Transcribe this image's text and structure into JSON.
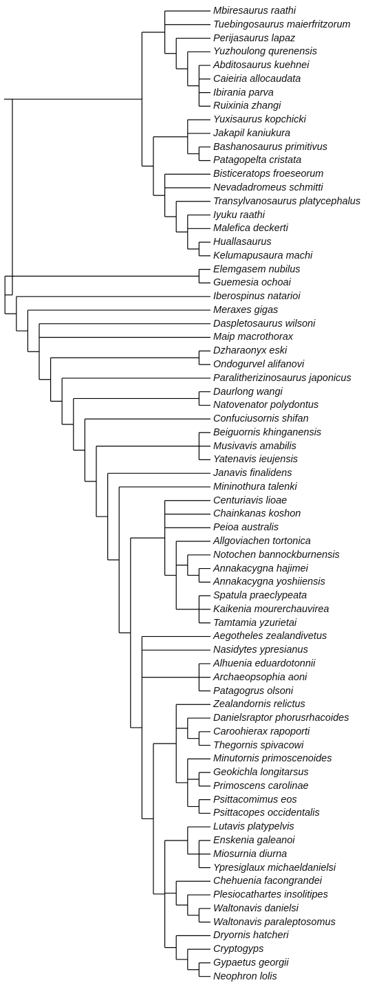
{
  "taxa": [
    "Mbiresaurus raathi",
    "Tuebingosaurus maierfritzorum",
    "Perijasaurus lapaz",
    "Yuzhoulong qurenensis",
    "Abditosaurus kuehnei",
    "Caieiria allocaudata",
    "Ibirania parva",
    "Ruixinia zhangi",
    "Yuxisaurus kopchicki",
    "Jakapil kaniukura",
    "Bashanosaurus primitivus",
    "Patagopelta cristata",
    "Bisticeratops froeseorum",
    "Nevadadromeus schmitti",
    "Transylvanosaurus platycephalus",
    "Iyuku raathi",
    "Malefica deckerti",
    "Huallasaurus",
    "Kelumapusaura machi",
    "Elemgasem nubilus",
    "Guemesia ochoai",
    "Iberospinus natarioi",
    "Meraxes gigas",
    "Daspletosaurus wilsoni",
    "Maip macrothorax",
    "Dzharaonyx eski",
    "Ondogurvel alifanovi",
    "Paralitherizinosaurus japonicus",
    "Daurlong wangi",
    "Natovenator polydontus",
    "Confuciusornis shifan",
    "Beiguornis khinganensis",
    "Musivavis amabilis",
    "Yatenavis ieujensis",
    "Janavis finalidens",
    "Mininothura talenki",
    "Centuriavis lioae",
    "Chainkanas koshon",
    "Peioa australis",
    "Allgoviachen tortonica",
    "Notochen bannockburnensis",
    "Annakacygna hajimei",
    "Annakacygna yoshiiensis",
    "Spatula praeclypeata",
    "Kaikenia mourerchauvirea",
    "Tamtamia yzurietai",
    "Aegotheles zealandivetus",
    "Nasidytes ypresianus",
    "Alhuenia eduardotonnii",
    "Archaeopsophia aoni",
    "Patagogrus olsoni",
    "Zealandornis relictus",
    "Danielsraptor phorusrhacoides",
    "Caroohierax rapoporti",
    "Thegornis spivacowi",
    "Minutornis primoscenoides",
    "Geokichla longitarsus",
    "Primoscens carolinae",
    "Psittacomimus eos",
    "Psittacopes occidentalis",
    "Lutavis platypelvis",
    "Enskenia galeanoi",
    "Miosurnia diurna",
    "Ypresiglaux michaeldanielsi",
    "Chehuenia facongrandei",
    "Plesiocathartes insolitipes",
    "Waltonavis danielsi",
    "Waltonavis paraleptosomus",
    "Dryornis hatcheri",
    "Cryptogyps",
    "Gypaetus georgii",
    "Neophron lolis"
  ],
  "tree": {
    "c": [
      {
        "c": [
          {
            "c": [
              0,
              1,
              {
                "c": [
                  2,
                  {
                    "c": [
                      3,
                      {
                        "c": [
                          4,
                          5,
                          6,
                          7
                        ]
                      }
                    ]
                  }
                ]
              }
            ]
          },
          {
            "c": [
              {
                "c": [
                  8,
                  9,
                  {
                    "c": [
                      10,
                      11
                    ]
                  }
                ]
              },
              {
                "c": [
                  12,
                  13,
                  {
                    "c": [
                      14,
                      {
                        "c": [
                          15,
                          16,
                          {
                            "c": [
                              17,
                              18
                            ]
                          }
                        ]
                      }
                    ]
                  }
                ]
              }
            ]
          }
        ]
      },
      {
        "c": [
          {
            "c": [
              19,
              20
            ]
          },
          {
            "c": [
              21,
              {
                "c": [
                  22,
                  {
                    "c": [
                      23,
                      24,
                      {
                        "c": [
                          {
                            "c": [
                              25,
                              26
                            ]
                          },
                          {
                            "c": [
                              27,
                              {
                                "c": [
                                  {
                                    "c": [
                                      28,
                                      29
                                    ]
                                  },
                                  {
                                    "c": [
                                      30,
                                      {
                                        "c": [
                                          {
                                            "c": [
                                              31,
                                              32,
                                              33
                                            ]
                                          },
                                          {
                                            "c": [
                                              34,
                                              {
                                                "c": [
                                                  35,
                                                  {
                                                    "c": [
                                                      {
                                                        "c": [
                                                          36,
                                                          37,
                                                          38,
                                                          {
                                                            "c": [
                                                              39,
                                                              {
                                                                "c": [
                                                                  40,
                                                                  {
                                                                    "c": [
                                                                      41,
                                                                      42
                                                                    ]
                                                                  }
                                                                ]
                                                              },
                                                              {
                                                                "c": [
                                                                  43,
                                                                  44,
                                                                  45
                                                                ]
                                                              }
                                                            ]
                                                          }
                                                        ]
                                                      },
                                                      {
                                                        "c": [
                                                          46,
                                                          47,
                                                          {
                                                            "c": [
                                                              48,
                                                              49,
                                                              50
                                                            ]
                                                          },
                                                          {
                                                            "c": [
                                                              {
                                                                "c": [
                                                                  51,
                                                                  {
                                                                    "c": [
                                                                      52,
                                                                      {
                                                                        "c": [
                                                                          53,
                                                                          54
                                                                        ]
                                                                      }
                                                                    ]
                                                                  },
                                                                  {
                                                                    "c": [
                                                                      55,
                                                                      {
                                                                        "c": [
                                                                          56,
                                                                          57
                                                                        ]
                                                                      },
                                                                      {
                                                                        "c": [
                                                                          58,
                                                                          59
                                                                        ]
                                                                      }
                                                                    ]
                                                                  }
                                                                ]
                                                              },
                                                              {
                                                                "c": [
                                                                  {
                                                                    "c": [
                                                                      60,
                                                                      {
                                                                        "c": [
                                                                          61,
                                                                          62,
                                                                          63
                                                                        ]
                                                                      }
                                                                    ]
                                                                  },
                                                                  {
                                                                    "c": [
                                                                      64,
                                                                      {
                                                                        "c": [
                                                                          65,
                                                                          {
                                                                            "c": [
                                                                              66,
                                                                              67
                                                                            ]
                                                                          }
                                                                        ]
                                                                      }
                                                                    ]
                                                                  },
                                                                  {
                                                                    "c": [
                                                                      68,
                                                                      {
                                                                        "c": [
                                                                          69,
                                                                          {
                                                                            "c": [
                                                                              70,
                                                                              71
                                                                            ]
                                                                          }
                                                                        ]
                                                                      }
                                                                    ]
                                                                  }
                                                                ]
                                                              }
                                                            ]
                                                          }
                                                        ]
                                                      }
                                                    ]
                                                  }
                                                ]
                                              }
                                            ]
                                          }
                                        ]
                                      }
                                    ]
                                  }
                                ]
                              }
                            ]
                          }
                        ]
                      }
                    ]
                  }
                ]
              }
            ]
          }
        ]
      }
    ]
  }
}
